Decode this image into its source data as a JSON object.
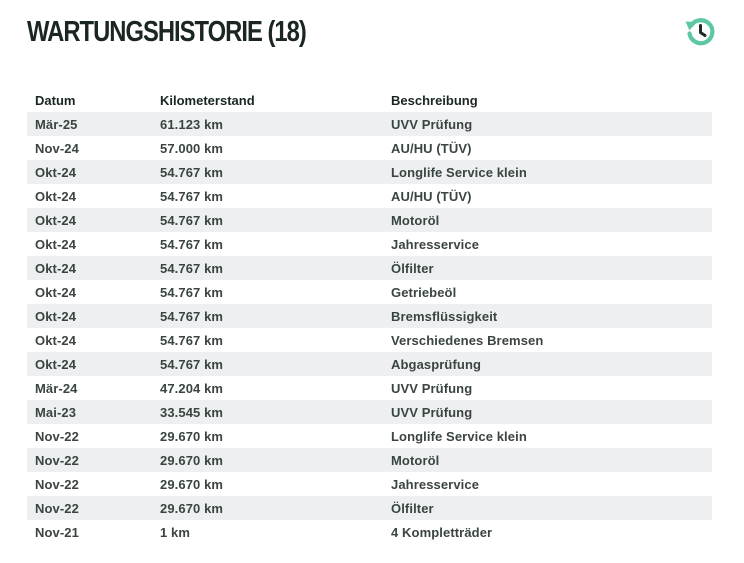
{
  "header": {
    "title": "WARTUNGSHISTORIE (18)",
    "icon": "history-icon",
    "accent_color": "#5cc7a0"
  },
  "table": {
    "columns": [
      "Datum",
      "Kilometerstand",
      "Beschreibung"
    ],
    "rows": [
      {
        "date": "Mär-25",
        "km": "61.123 km",
        "desc": "UVV Prüfung"
      },
      {
        "date": "Nov-24",
        "km": "57.000 km",
        "desc": "AU/HU (TÜV)"
      },
      {
        "date": "Okt-24",
        "km": "54.767 km",
        "desc": "Longlife Service klein"
      },
      {
        "date": "Okt-24",
        "km": "54.767 km",
        "desc": "AU/HU (TÜV)"
      },
      {
        "date": "Okt-24",
        "km": "54.767 km",
        "desc": "Motoröl"
      },
      {
        "date": "Okt-24",
        "km": "54.767 km",
        "desc": "Jahresservice"
      },
      {
        "date": "Okt-24",
        "km": "54.767 km",
        "desc": "Ölfilter"
      },
      {
        "date": "Okt-24",
        "km": "54.767 km",
        "desc": "Getriebeöl"
      },
      {
        "date": "Okt-24",
        "km": "54.767 km",
        "desc": "Bremsflüssigkeit"
      },
      {
        "date": "Okt-24",
        "km": "54.767 km",
        "desc": "Verschiedenes Bremsen"
      },
      {
        "date": "Okt-24",
        "km": "54.767 km",
        "desc": "Abgasprüfung"
      },
      {
        "date": "Mär-24",
        "km": "47.204 km",
        "desc": "UVV Prüfung"
      },
      {
        "date": "Mai-23",
        "km": "33.545 km",
        "desc": "UVV Prüfung"
      },
      {
        "date": "Nov-22",
        "km": "29.670 km",
        "desc": "Longlife Service klein"
      },
      {
        "date": "Nov-22",
        "km": "29.670 km",
        "desc": "Motoröl"
      },
      {
        "date": "Nov-22",
        "km": "29.670 km",
        "desc": "Jahresservice"
      },
      {
        "date": "Nov-22",
        "km": "29.670 km",
        "desc": "Ölfilter"
      },
      {
        "date": "Nov-21",
        "km": "1 km",
        "desc": "4 Kompletträder"
      }
    ]
  }
}
